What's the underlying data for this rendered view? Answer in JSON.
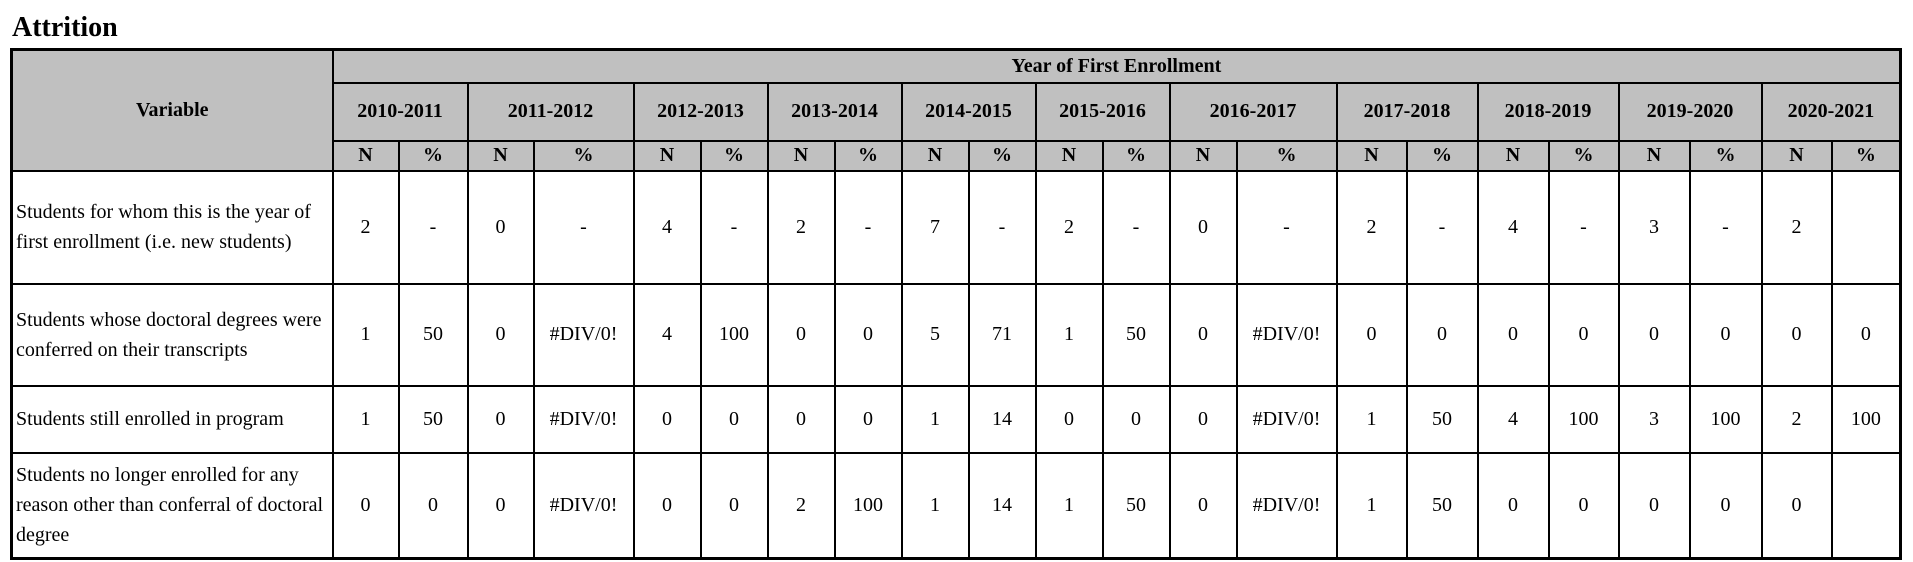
{
  "title": "Attrition",
  "table": {
    "variable_header": "Variable",
    "group_header": "Year of First Enrollment",
    "years": [
      "2010-2011",
      "2011-2012",
      "2012-2013",
      "2013-2014",
      "2014-2015",
      "2015-2016",
      "2016-2017",
      "2017-2018",
      "2018-2019",
      "2019-2020",
      "2020-2021"
    ],
    "subheaders": [
      "N",
      "%"
    ],
    "rows": [
      {
        "label": "Students for whom this is the year of first enrollment (i.e. new students)",
        "cells": [
          2,
          "-",
          0,
          "-",
          4,
          "-",
          2,
          "-",
          7,
          "-",
          2,
          "-",
          0,
          "-",
          2,
          "-",
          4,
          "-",
          3,
          "-",
          2,
          null
        ]
      },
      {
        "label": "Students whose doctoral degrees were conferred on their transcripts",
        "cells": [
          1,
          50,
          0,
          "#DIV/0!",
          4,
          100,
          0,
          0,
          5,
          71,
          1,
          50,
          0,
          "#DIV/0!",
          0,
          0,
          0,
          0,
          0,
          0,
          0,
          0
        ]
      },
      {
        "label": "Students still enrolled in program",
        "cells": [
          1,
          50,
          0,
          "#DIV/0!",
          0,
          0,
          0,
          0,
          1,
          14,
          0,
          0,
          0,
          "#DIV/0!",
          1,
          50,
          4,
          100,
          3,
          100,
          2,
          100
        ]
      },
      {
        "label": "Students no longer enrolled for any reason other than conferral of doctoral degree",
        "cells": [
          0,
          0,
          0,
          "#DIV/0!",
          0,
          0,
          2,
          100,
          1,
          14,
          1,
          50,
          0,
          "#DIV/0!",
          1,
          50,
          0,
          0,
          0,
          0,
          0,
          null
        ]
      }
    ]
  }
}
